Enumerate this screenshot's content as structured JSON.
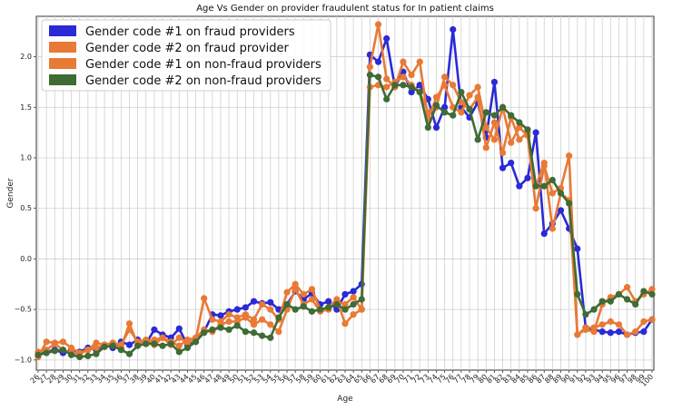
{
  "chart_data": {
    "type": "line",
    "title": "Age Vs Gender on provider fraudulent status for In patient claims",
    "xlabel": "Age",
    "ylabel": "Gender",
    "x": [
      26,
      27,
      28,
      29,
      30,
      31,
      32,
      33,
      34,
      35,
      36,
      37,
      38,
      39,
      40,
      41,
      42,
      43,
      44,
      45,
      46,
      47,
      48,
      49,
      50,
      51,
      52,
      53,
      54,
      55,
      56,
      57,
      58,
      59,
      60,
      61,
      62,
      63,
      64,
      65,
      66,
      67,
      68,
      69,
      70,
      71,
      72,
      73,
      74,
      75,
      76,
      77,
      78,
      79,
      80,
      81,
      82,
      83,
      84,
      85,
      86,
      87,
      88,
      89,
      90,
      91,
      92,
      93,
      94,
      95,
      96,
      97,
      98,
      99,
      100
    ],
    "x_tick_labels": [
      "26",
      "27",
      "28",
      "29",
      "30",
      "31",
      "32",
      "33",
      "34",
      "35",
      "36",
      "37",
      "38",
      "39",
      "40",
      "41",
      "42",
      "43",
      "44",
      "45",
      "46",
      "47",
      "48",
      "49",
      "50",
      "51",
      "52",
      "53",
      "54",
      "55",
      "56",
      "57",
      "58",
      "59",
      "60",
      "61",
      "62",
      "63",
      "64",
      "65",
      "66",
      "67",
      "68",
      "69",
      "70",
      "71",
      "72",
      "73",
      "74",
      "75",
      "76",
      "77",
      "78",
      "79",
      "80",
      "81",
      "82",
      "83",
      "84",
      "85",
      "86",
      "87",
      "88",
      "89",
      "90",
      "91",
      "92",
      "93",
      "94",
      "95",
      "96",
      "97",
      "98",
      "99",
      "100"
    ],
    "ylim": [
      -1.1,
      2.4
    ],
    "y_ticks": [
      -1.0,
      -0.5,
      0.0,
      0.5,
      1.0,
      1.5,
      2.0
    ],
    "y_tick_labels": [
      "−1.0",
      "−0.5",
      "0.0",
      "0.5",
      "1.0",
      "1.5",
      "2.0"
    ],
    "grid": true,
    "legend_position": "top-left",
    "series": [
      {
        "name": "Gender code #1 on fraud providers",
        "color": "#2a2ad6",
        "values": [
          -0.95,
          -0.92,
          -0.9,
          -0.93,
          -0.9,
          -0.92,
          -0.88,
          -0.9,
          -0.85,
          -0.88,
          -0.82,
          -0.85,
          -0.8,
          -0.84,
          -0.7,
          -0.75,
          -0.78,
          -0.69,
          -0.85,
          -0.82,
          -0.72,
          -0.55,
          -0.56,
          -0.52,
          -0.5,
          -0.48,
          -0.42,
          -0.44,
          -0.43,
          -0.5,
          -0.45,
          -0.32,
          -0.4,
          -0.34,
          -0.45,
          -0.42,
          -0.5,
          -0.35,
          -0.32,
          -0.25,
          2.02,
          1.95,
          2.18,
          1.7,
          1.85,
          1.65,
          1.72,
          1.58,
          1.3,
          1.5,
          2.27,
          1.5,
          1.4,
          1.55,
          1.2,
          1.75,
          0.9,
          0.95,
          0.72,
          0.8,
          1.25,
          0.25,
          0.35,
          0.48,
          0.3,
          0.1,
          -0.68,
          -0.7,
          -0.72,
          -0.73,
          -0.72,
          -0.75,
          -0.73,
          -0.72,
          -0.6
        ]
      },
      {
        "name": "Gender code #2 on fraud provider",
        "color": "#e87a35",
        "values": [
          -0.97,
          -0.82,
          -0.83,
          -0.82,
          -0.88,
          -0.93,
          -0.9,
          -0.83,
          -0.85,
          -0.85,
          -0.88,
          -0.64,
          -0.85,
          -0.82,
          -0.8,
          -0.78,
          -0.85,
          -0.78,
          -0.83,
          -0.8,
          -0.39,
          -0.6,
          -0.62,
          -0.55,
          -0.58,
          -0.55,
          -0.6,
          -0.45,
          -0.5,
          -0.6,
          -0.33,
          -0.25,
          -0.35,
          -0.3,
          -0.5,
          -0.48,
          -0.4,
          -0.64,
          -0.55,
          -0.5,
          1.9,
          2.32,
          1.78,
          1.7,
          1.95,
          1.82,
          1.95,
          1.38,
          1.6,
          1.72,
          1.5,
          1.45,
          1.62,
          1.7,
          1.3,
          1.18,
          1.5,
          1.15,
          1.3,
          1.22,
          0.5,
          0.92,
          0.65,
          0.7,
          1.02,
          -0.75,
          -0.68,
          -0.68,
          -0.65,
          -0.62,
          -0.65,
          -0.75,
          -0.72,
          -0.62,
          -0.6
        ]
      },
      {
        "name": "Gender code #1 on non-fraud providers",
        "color": "#e87a35",
        "values": [
          -0.92,
          -0.9,
          -0.84,
          -0.9,
          -0.93,
          -0.94,
          -0.9,
          -0.88,
          -0.85,
          -0.83,
          -0.85,
          -0.7,
          -0.82,
          -0.8,
          -0.85,
          -0.78,
          -0.82,
          -0.86,
          -0.8,
          -0.78,
          -0.7,
          -0.72,
          -0.65,
          -0.62,
          -0.62,
          -0.58,
          -0.65,
          -0.6,
          -0.65,
          -0.72,
          -0.5,
          -0.3,
          -0.45,
          -0.4,
          -0.52,
          -0.5,
          -0.42,
          -0.45,
          -0.38,
          -0.5,
          1.7,
          1.72,
          1.7,
          1.75,
          1.8,
          1.72,
          1.65,
          1.45,
          1.5,
          1.8,
          1.72,
          1.55,
          1.48,
          1.6,
          1.1,
          1.35,
          1.05,
          1.4,
          1.18,
          1.25,
          0.72,
          0.95,
          0.3,
          0.65,
          0.58,
          -0.75,
          -0.7,
          -0.72,
          -0.45,
          -0.38,
          -0.35,
          -0.28,
          -0.42,
          -0.35,
          -0.3
        ]
      },
      {
        "name": "Gender code #2 on non-fraud providers",
        "color": "#3f6b35",
        "values": [
          -0.95,
          -0.93,
          -0.91,
          -0.9,
          -0.95,
          -0.97,
          -0.96,
          -0.94,
          -0.87,
          -0.86,
          -0.9,
          -0.94,
          -0.86,
          -0.84,
          -0.84,
          -0.86,
          -0.84,
          -0.92,
          -0.88,
          -0.82,
          -0.73,
          -0.7,
          -0.68,
          -0.7,
          -0.66,
          -0.72,
          -0.73,
          -0.76,
          -0.78,
          -0.58,
          -0.45,
          -0.5,
          -0.47,
          -0.52,
          -0.5,
          -0.48,
          -0.45,
          -0.5,
          -0.45,
          -0.4,
          1.82,
          1.8,
          1.58,
          1.72,
          1.72,
          1.7,
          1.65,
          1.3,
          1.52,
          1.45,
          1.42,
          1.65,
          1.48,
          1.18,
          1.45,
          1.42,
          1.5,
          1.42,
          1.35,
          1.28,
          0.72,
          0.72,
          0.78,
          0.65,
          0.55,
          -0.35,
          -0.55,
          -0.5,
          -0.42,
          -0.42,
          -0.35,
          -0.4,
          -0.45,
          -0.32,
          -0.35
        ]
      }
    ]
  }
}
